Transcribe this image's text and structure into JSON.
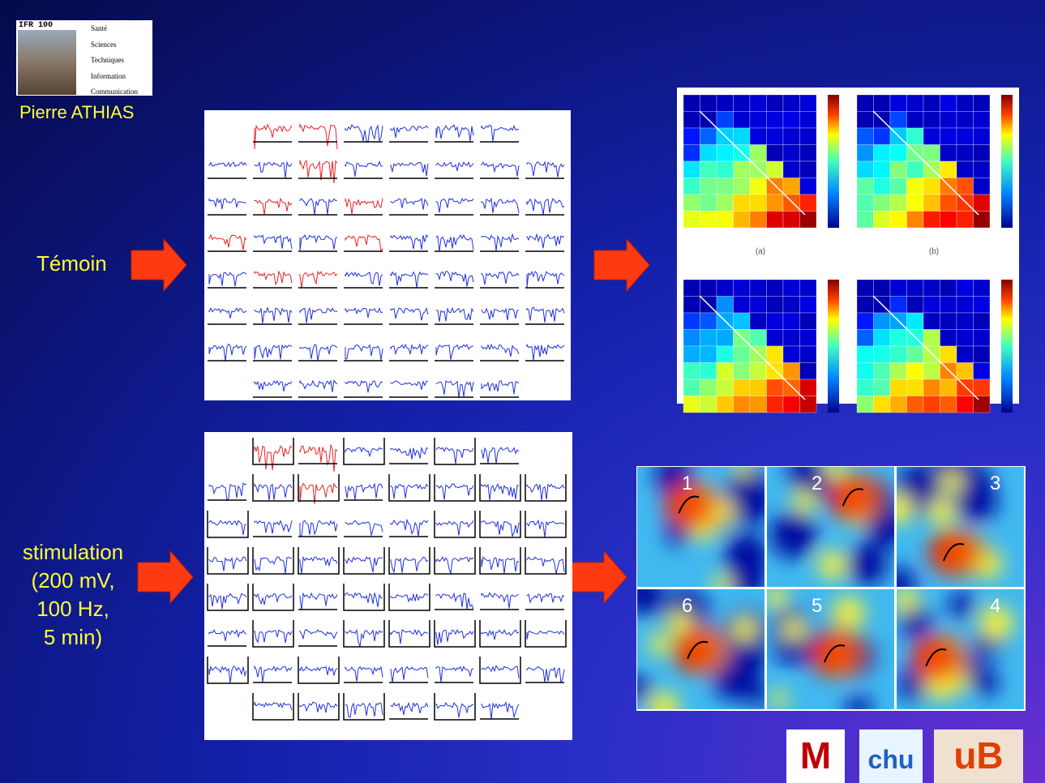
{
  "header": {
    "logo_title": "IFR 100",
    "logo_lines": [
      "Santé",
      "Sciences",
      "Techniques",
      "Information",
      "Communication"
    ],
    "author": "Pierre ATHIAS"
  },
  "rows": [
    {
      "label": [
        "Témoin"
      ]
    },
    {
      "label": [
        "stimulation",
        "(200 mV,",
        "100 Hz,",
        "5 min)"
      ]
    }
  ],
  "matrices": {
    "captions": [
      "(a)",
      "(b)"
    ]
  },
  "maps": {
    "numbers": [
      "1",
      "2",
      "3",
      "6",
      "5",
      "4"
    ]
  },
  "logos": [
    "M",
    "chu",
    "uB"
  ]
}
